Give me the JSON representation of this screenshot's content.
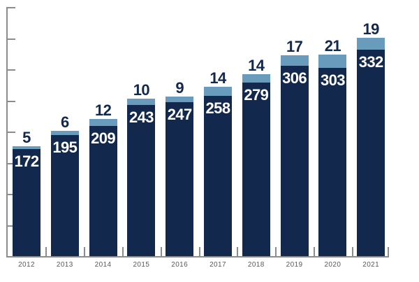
{
  "chart_data": {
    "type": "bar",
    "stacked": true,
    "title": "",
    "xlabel": "",
    "ylabel": "",
    "categories": [
      "2012",
      "2013",
      "2014",
      "2015",
      "2016",
      "2017",
      "2018",
      "2019",
      "2020",
      "2021"
    ],
    "series": [
      {
        "name": "dark-navy-base",
        "color": "#12294d",
        "values": [
          172,
          195,
          209,
          243,
          247,
          258,
          279,
          306,
          303,
          332
        ]
      },
      {
        "name": "light-blue-cap",
        "color": "#689bbc",
        "values": [
          5,
          6,
          12,
          10,
          9,
          14,
          14,
          17,
          21,
          19
        ]
      }
    ],
    "totals": [
      177,
      201,
      221,
      253,
      256,
      272,
      293,
      323,
      324,
      351
    ],
    "data_labels": {
      "inside_bar_values": [
        "172",
        "195",
        "209",
        "243",
        "247",
        "258",
        "279",
        "306",
        "303",
        "332"
      ],
      "above_bar_values": [
        "5",
        "6",
        "12",
        "10",
        "9",
        "14",
        "14",
        "17",
        "21",
        "19"
      ],
      "inside_color": "#ffffff",
      "above_color": "#12294d"
    },
    "ylim": [
      0,
      400
    ],
    "y_tick_interval": 50,
    "y_tick_labels_visible": false,
    "grid": false,
    "legend": "none",
    "axis_color": "#8a8c8e",
    "x_tick_label_color": "#57585c"
  }
}
